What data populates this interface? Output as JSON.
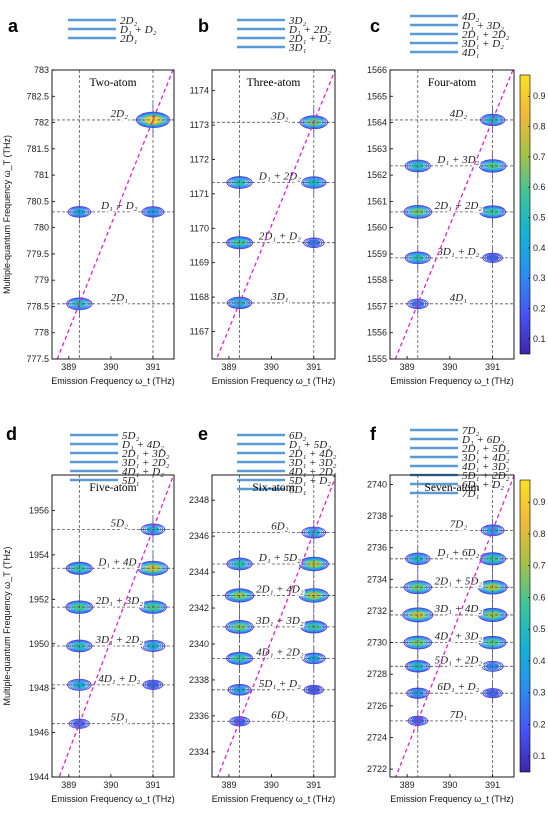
{
  "ylabel": "Multiple-quantum Frequency ω_T (THz)",
  "xlabel": "Emission Frequency ω_t (THz)",
  "colorbar": {
    "ticks": [
      0.1,
      0.2,
      0.3,
      0.4,
      0.5,
      0.6,
      0.7,
      0.8,
      0.9
    ],
    "colors": [
      "#3e26a8",
      "#4654f5",
      "#2c8ef0",
      "#14b2d5",
      "#3ec39a",
      "#a3c148",
      "#f0b93a",
      "#fae025"
    ]
  },
  "chart_data": [
    {
      "type": "heatmap",
      "panel": "a",
      "title": "Two-atom",
      "ladder": [
        "2D₂",
        "D₁ + D₂",
        "2D₁"
      ],
      "xlim": [
        388.6,
        391.5
      ],
      "xticks": [
        389,
        390,
        391
      ],
      "ylim": [
        777.5,
        783
      ],
      "yticks": [
        777.5,
        778,
        778.5,
        779,
        779.5,
        780,
        780.5,
        781,
        781.5,
        782,
        782.5,
        783
      ],
      "levels": [
        {
          "label": "2D₂",
          "value": 782.05
        },
        {
          "label": "D₁ + D₂",
          "value": 780.3
        },
        {
          "label": "2D₁",
          "value": 778.55
        }
      ],
      "vlines": [
        389.25,
        391.0
      ],
      "diagonal": [
        [
          389.25,
          778.55
        ],
        [
          391.0,
          782.05
        ]
      ],
      "peaks": [
        {
          "x": 391.0,
          "y": 782.05,
          "amp": 0.95
        },
        {
          "x": 389.25,
          "y": 780.3,
          "amp": 0.3
        },
        {
          "x": 391.0,
          "y": 780.3,
          "amp": 0.25
        },
        {
          "x": 389.25,
          "y": 778.55,
          "amp": 0.45
        }
      ]
    },
    {
      "type": "heatmap",
      "panel": "b",
      "title": "Three-atom",
      "ladder": [
        "3D₂",
        "D₁ + 2D₂",
        "2D₁ + D₂",
        "3D₁"
      ],
      "xlim": [
        388.6,
        391.5
      ],
      "xticks": [
        389,
        390,
        391
      ],
      "ylim": [
        1166.2,
        1174.6
      ],
      "yticks": [
        1167,
        1168,
        1169,
        1170,
        1171,
        1172,
        1173,
        1174
      ],
      "levels": [
        {
          "label": "3D₂",
          "value": 1173.08
        },
        {
          "label": "D₁ + 2D₂",
          "value": 1171.33
        },
        {
          "label": "2D₁ + D₂",
          "value": 1169.58
        },
        {
          "label": "3D₁",
          "value": 1167.83
        }
      ],
      "vlines": [
        389.25,
        391.0
      ],
      "diagonal": [
        [
          389.25,
          1167.83
        ],
        [
          391.0,
          1173.08
        ]
      ],
      "peaks": [
        {
          "x": 391.0,
          "y": 1173.08,
          "amp": 0.6
        },
        {
          "x": 389.25,
          "y": 1171.33,
          "amp": 0.45
        },
        {
          "x": 391.0,
          "y": 1171.33,
          "amp": 0.4
        },
        {
          "x": 389.25,
          "y": 1169.58,
          "amp": 0.5
        },
        {
          "x": 391.0,
          "y": 1169.58,
          "amp": 0.15
        },
        {
          "x": 389.25,
          "y": 1167.83,
          "amp": 0.4
        }
      ]
    },
    {
      "type": "heatmap",
      "panel": "c",
      "title": "Four-atom",
      "ladder": [
        "4D₂",
        "D₁ + 3D₂",
        "2D₁ + 2D₂",
        "3D₁ + D₂",
        "4D₁"
      ],
      "xlim": [
        388.6,
        391.5
      ],
      "xticks": [
        389,
        390,
        391
      ],
      "ylim": [
        1555,
        1566
      ],
      "yticks": [
        1555,
        1556,
        1557,
        1558,
        1559,
        1560,
        1561,
        1562,
        1563,
        1564,
        1565,
        1566
      ],
      "levels": [
        {
          "label": "4D₂",
          "value": 1564.1
        },
        {
          "label": "D₁ + 3D₂",
          "value": 1562.35
        },
        {
          "label": "2D₁ + 2D₂",
          "value": 1560.6
        },
        {
          "label": "3D₁ + D₂",
          "value": 1558.85
        },
        {
          "label": "4D₁",
          "value": 1557.1
        }
      ],
      "vlines": [
        389.25,
        391.0
      ],
      "diagonal": [
        [
          389.25,
          1557.1
        ],
        [
          391.0,
          1564.1
        ]
      ],
      "peaks": [
        {
          "x": 391.0,
          "y": 1564.1,
          "amp": 0.4
        },
        {
          "x": 389.25,
          "y": 1562.35,
          "amp": 0.45
        },
        {
          "x": 391.0,
          "y": 1562.35,
          "amp": 0.55
        },
        {
          "x": 389.25,
          "y": 1560.6,
          "amp": 0.6
        },
        {
          "x": 391.0,
          "y": 1560.6,
          "amp": 0.5
        },
        {
          "x": 389.25,
          "y": 1558.85,
          "amp": 0.45
        },
        {
          "x": 391.0,
          "y": 1558.85,
          "amp": 0.1
        },
        {
          "x": 389.25,
          "y": 1557.1,
          "amp": 0.15
        }
      ]
    },
    {
      "type": "heatmap",
      "panel": "d",
      "title": "Five-atom",
      "ladder": [
        "5D₂",
        "D₁ + 4D₂",
        "2D₁ + 3D₂",
        "3D₁ + 2D₂",
        "4D₁ + D₂",
        "5D₁"
      ],
      "xlim": [
        388.6,
        391.5
      ],
      "xticks": [
        389,
        390,
        391
      ],
      "ylim": [
        1944,
        1957.6
      ],
      "yticks": [
        1944,
        1946,
        1948,
        1950,
        1952,
        1954,
        1956
      ],
      "levels": [
        {
          "label": "5D₂",
          "value": 1955.15
        },
        {
          "label": "D₁ + 4D₂",
          "value": 1953.4
        },
        {
          "label": "2D₁ + 3D₂",
          "value": 1951.65
        },
        {
          "label": "3D₁ + 2D₂",
          "value": 1949.9
        },
        {
          "label": "4D₁ + D₂",
          "value": 1948.15
        },
        {
          "label": "5D₁",
          "value": 1946.4
        }
      ],
      "vlines": [
        389.25,
        391.0
      ],
      "diagonal": [
        [
          389.25,
          1946.4
        ],
        [
          391.0,
          1955.15
        ]
      ],
      "peaks": [
        {
          "x": 391.0,
          "y": 1955.15,
          "amp": 0.35
        },
        {
          "x": 389.25,
          "y": 1953.4,
          "amp": 0.5
        },
        {
          "x": 391.0,
          "y": 1953.4,
          "amp": 0.75
        },
        {
          "x": 389.25,
          "y": 1951.65,
          "amp": 0.55
        },
        {
          "x": 391.0,
          "y": 1951.65,
          "amp": 0.55
        },
        {
          "x": 389.25,
          "y": 1949.9,
          "amp": 0.45
        },
        {
          "x": 391.0,
          "y": 1949.9,
          "amp": 0.35
        },
        {
          "x": 389.25,
          "y": 1948.15,
          "amp": 0.35
        },
        {
          "x": 391.0,
          "y": 1948.15,
          "amp": 0.1
        },
        {
          "x": 389.25,
          "y": 1946.4,
          "amp": 0.12
        }
      ]
    },
    {
      "type": "heatmap",
      "panel": "e",
      "title": "Six-atom",
      "ladder": [
        "6D₂",
        "D₁ + 5D₂",
        "2D₁ + 4D₂",
        "3D₁ + 3D₂",
        "4D₁ + 2D₂",
        "5D₁ + D₂",
        "6D₁"
      ],
      "xlim": [
        388.6,
        391.5
      ],
      "xticks": [
        389,
        390,
        391
      ],
      "ylim": [
        2332.6,
        2349.4
      ],
      "yticks": [
        2334,
        2336,
        2338,
        2340,
        2342,
        2344,
        2346,
        2348
      ],
      "levels": [
        {
          "label": "6D₂",
          "value": 2346.2
        },
        {
          "label": "D₁ + 5D₂",
          "value": 2344.45
        },
        {
          "label": "2D₁ + 4D₂",
          "value": 2342.7
        },
        {
          "label": "3D₁ + 3D₂",
          "value": 2340.95
        },
        {
          "label": "4D₁ + 2D₂",
          "value": 2339.2
        },
        {
          "label": "5D₁ + D₂",
          "value": 2337.45
        },
        {
          "label": "6D₁",
          "value": 2335.7
        }
      ],
      "vlines": [
        389.25,
        391.0
      ],
      "diagonal": [
        [
          389.25,
          2335.7
        ],
        [
          391.0,
          2346.2
        ]
      ],
      "peaks": [
        {
          "x": 391.0,
          "y": 2346.2,
          "amp": 0.35
        },
        {
          "x": 389.25,
          "y": 2344.45,
          "amp": 0.45
        },
        {
          "x": 391.0,
          "y": 2344.45,
          "amp": 0.7
        },
        {
          "x": 389.25,
          "y": 2342.7,
          "amp": 0.65
        },
        {
          "x": 391.0,
          "y": 2342.7,
          "amp": 0.7
        },
        {
          "x": 389.25,
          "y": 2340.95,
          "amp": 0.6
        },
        {
          "x": 391.0,
          "y": 2340.95,
          "amp": 0.5
        },
        {
          "x": 389.25,
          "y": 2339.2,
          "amp": 0.5
        },
        {
          "x": 391.0,
          "y": 2339.2,
          "amp": 0.3
        },
        {
          "x": 389.25,
          "y": 2337.45,
          "amp": 0.3
        },
        {
          "x": 391.0,
          "y": 2337.45,
          "amp": 0.08
        },
        {
          "x": 389.25,
          "y": 2335.7,
          "amp": 0.1
        }
      ]
    },
    {
      "type": "heatmap",
      "panel": "f",
      "title": "Seven-atom",
      "ladder": [
        "7D₂",
        "D₁ + 6D₂",
        "2D₁ + 5D₂",
        "3D₁ + 4D₂",
        "4D₁ + 3D₂",
        "5D₁ + 2D₂",
        "6D₁ + D₂",
        "7D₁"
      ],
      "xlim": [
        388.6,
        391.5
      ],
      "xticks": [
        389,
        390,
        391
      ],
      "ylim": [
        2721.5,
        2740.6
      ],
      "yticks": [
        2722,
        2724,
        2726,
        2728,
        2730,
        2732,
        2734,
        2736,
        2738,
        2740
      ],
      "levels": [
        {
          "label": "7D₂",
          "value": 2737.1
        },
        {
          "label": "D₁ + 6D₂",
          "value": 2735.3
        },
        {
          "label": "2D₁ + 5D₂",
          "value": 2733.5
        },
        {
          "label": "3D₁ + 4D₂",
          "value": 2731.75
        },
        {
          "label": "4D₁ + 3D₂",
          "value": 2730.0
        },
        {
          "label": "5D₁ + 2D₂",
          "value": 2728.5
        },
        {
          "label": "6D₁ + D₂",
          "value": 2726.8
        },
        {
          "label": "7D₁",
          "value": 2725.05
        }
      ],
      "vlines": [
        389.25,
        391.0
      ],
      "diagonal": [
        [
          389.25,
          2725.05
        ],
        [
          391.0,
          2737.1
        ]
      ],
      "peaks": [
        {
          "x": 391.0,
          "y": 2737.1,
          "amp": 0.3
        },
        {
          "x": 389.25,
          "y": 2735.3,
          "amp": 0.4
        },
        {
          "x": 391.0,
          "y": 2735.3,
          "amp": 0.5
        },
        {
          "x": 389.25,
          "y": 2733.5,
          "amp": 0.6
        },
        {
          "x": 391.0,
          "y": 2733.5,
          "amp": 0.7
        },
        {
          "x": 389.25,
          "y": 2731.75,
          "amp": 0.75
        },
        {
          "x": 391.0,
          "y": 2731.75,
          "amp": 0.65
        },
        {
          "x": 389.25,
          "y": 2730.0,
          "amp": 0.6
        },
        {
          "x": 391.0,
          "y": 2730.0,
          "amp": 0.55
        },
        {
          "x": 389.25,
          "y": 2728.5,
          "amp": 0.4
        },
        {
          "x": 391.0,
          "y": 2728.5,
          "amp": 0.2
        },
        {
          "x": 389.25,
          "y": 2726.8,
          "amp": 0.25
        },
        {
          "x": 391.0,
          "y": 2726.8,
          "amp": 0.1
        },
        {
          "x": 389.25,
          "y": 2725.05,
          "amp": 0.1
        }
      ]
    }
  ]
}
